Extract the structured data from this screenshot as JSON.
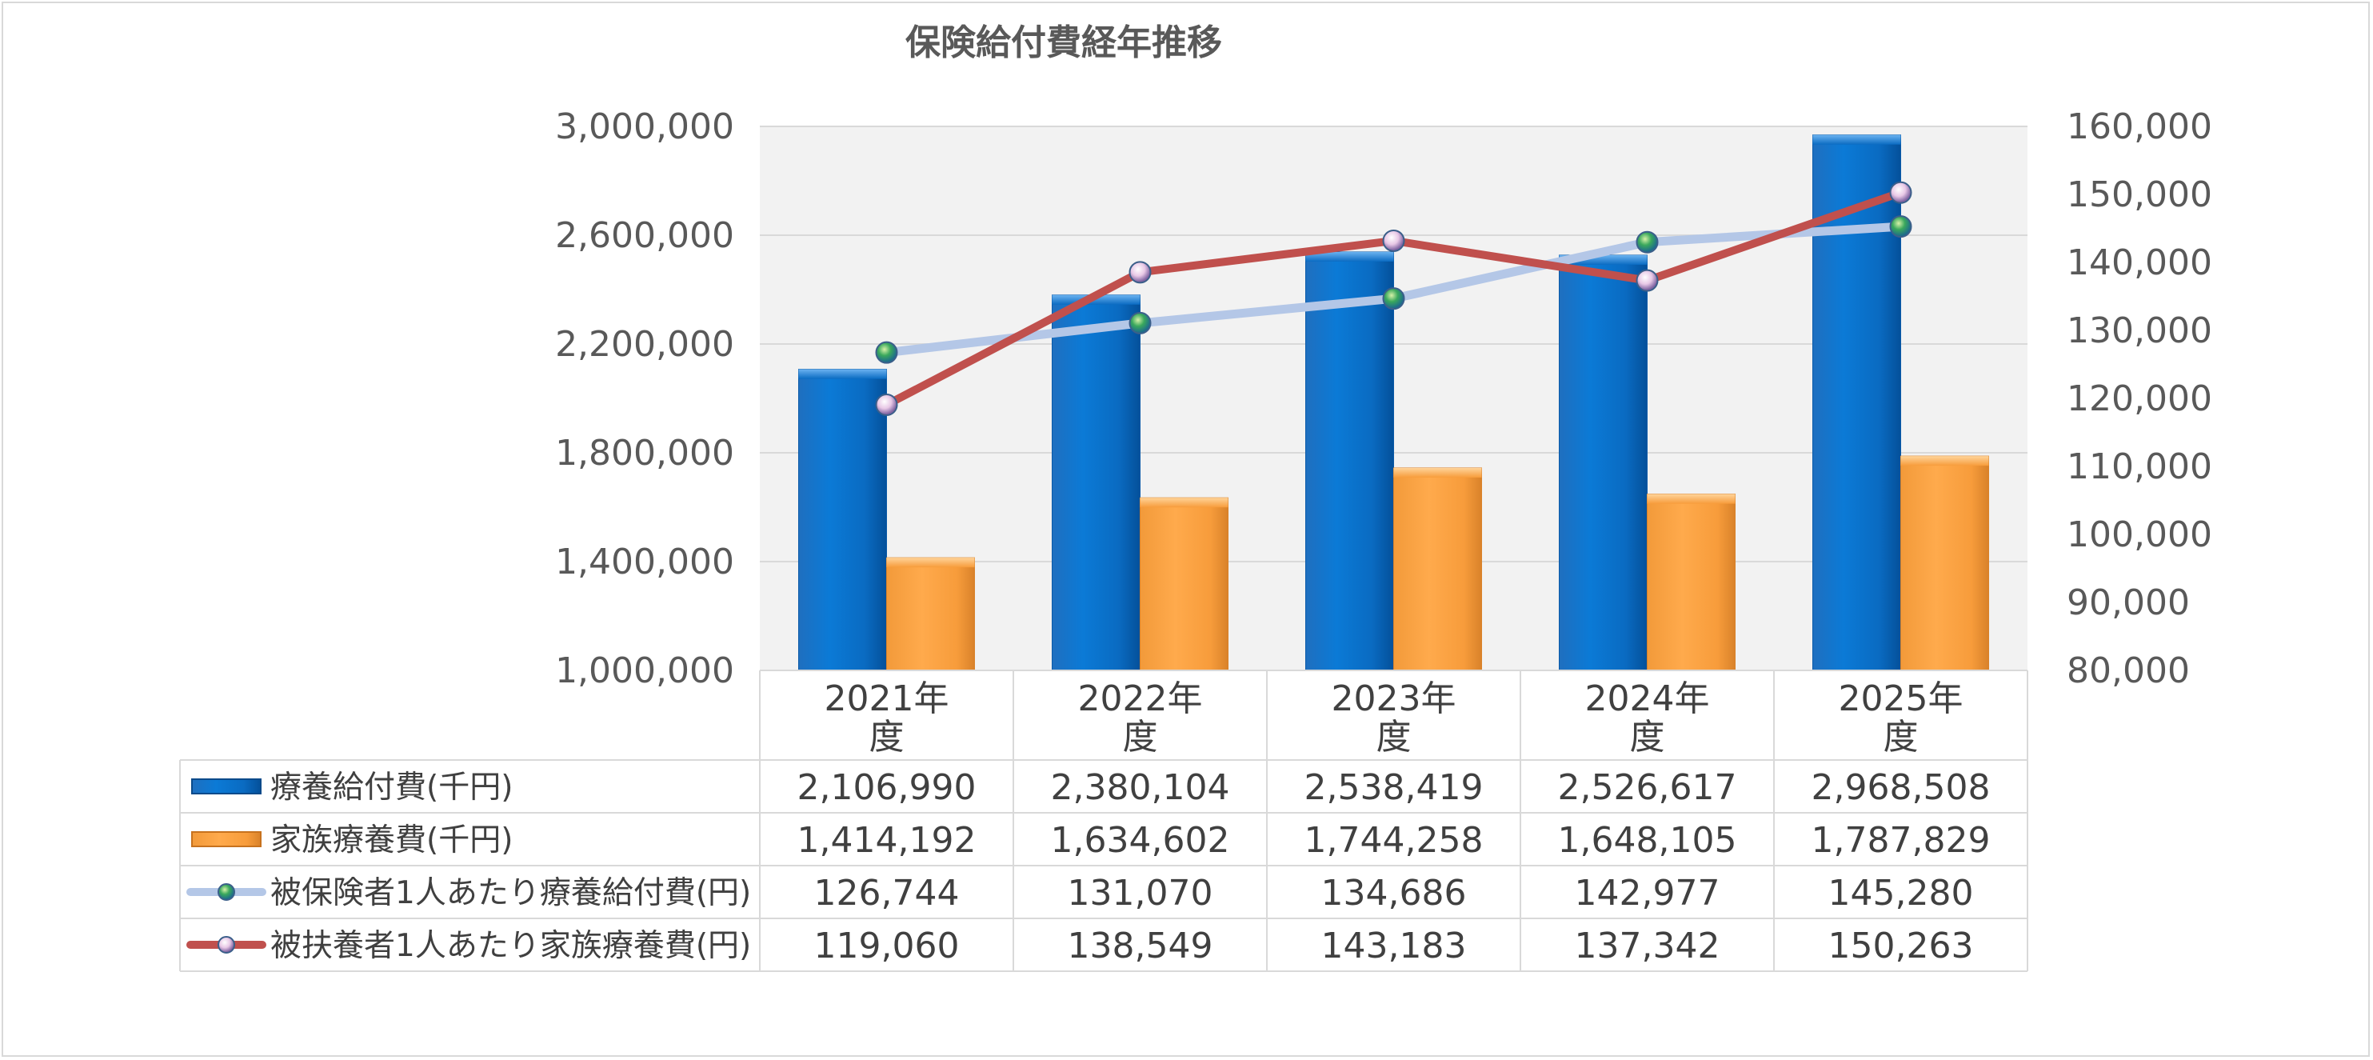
{
  "chart_data": {
    "type": "bar",
    "title": "保険給付費経年推移",
    "categories": [
      "2021年度",
      "2022年度",
      "2023年度",
      "2024年度",
      "2025年度"
    ],
    "category_lines": [
      [
        "2021年",
        "度"
      ],
      [
        "2022年",
        "度"
      ],
      [
        "2023年",
        "度"
      ],
      [
        "2024年",
        "度"
      ],
      [
        "2025年",
        "度"
      ]
    ],
    "y_left": {
      "min": 1000000,
      "max": 3000000,
      "ticks": [
        "1,000,000",
        "1,400,000",
        "1,800,000",
        "2,200,000",
        "2,600,000",
        "3,000,000"
      ]
    },
    "y_right": {
      "min": 80000,
      "max": 160000,
      "ticks": [
        "80,000",
        "90,000",
        "100,000",
        "110,000",
        "120,000",
        "130,000",
        "140,000",
        "150,000",
        "160,000"
      ]
    },
    "grid": true,
    "legend": "data-table",
    "series": [
      {
        "name": "療養給付費(千円)",
        "type": "bar",
        "axis": "left",
        "color": "#0070c0",
        "values": [
          2106990,
          2380104,
          2538419,
          2526617,
          2968508
        ],
        "labels": [
          "2,106,990",
          "2,380,104",
          "2,538,419",
          "2,526,617",
          "2,968,508"
        ]
      },
      {
        "name": "家族療養費(千円)",
        "type": "bar",
        "axis": "left",
        "color": "#ffa040",
        "values": [
          1414192,
          1634602,
          1744258,
          1648105,
          1787829
        ],
        "labels": [
          "1,414,192",
          "1,634,602",
          "1,744,258",
          "1,648,105",
          "1,787,829"
        ]
      },
      {
        "name": "被保険者1人あたり療養給付費(円)",
        "type": "line",
        "axis": "right",
        "color": "#b4c7e7",
        "marker_color": "#2e9e5a",
        "values": [
          126744,
          131070,
          134686,
          142977,
          145280
        ],
        "labels": [
          "126,744",
          "131,070",
          "134,686",
          "142,977",
          "145,280"
        ]
      },
      {
        "name": "被扶養者1人あたり家族療養費(円)",
        "type": "line",
        "axis": "right",
        "color": "#c0504d",
        "marker_color": "#8064a2",
        "values": [
          119060,
          138549,
          143183,
          137342,
          150263
        ],
        "labels": [
          "119,060",
          "138,549",
          "143,183",
          "137,342",
          "150,263"
        ]
      }
    ]
  }
}
